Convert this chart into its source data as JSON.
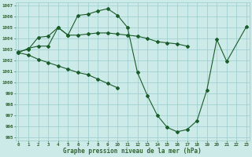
{
  "title": "Graphe pression niveau de la mer (hPa)",
  "bg_color": "#cceae8",
  "grid_color": "#99cccc",
  "line_color": "#1a5c2a",
  "tick_color": "#336633",
  "xlim": [
    -0.3,
    23.3
  ],
  "ylim": [
    994.7,
    1007.3
  ],
  "xticks": [
    0,
    1,
    2,
    3,
    4,
    5,
    6,
    7,
    8,
    9,
    10,
    11,
    12,
    13,
    14,
    15,
    16,
    17,
    18,
    19,
    20,
    21,
    22,
    23
  ],
  "yticks": [
    995,
    996,
    997,
    998,
    999,
    1000,
    1001,
    1002,
    1003,
    1004,
    1005,
    1006,
    1007
  ],
  "series1_x": [
    0,
    1,
    2,
    3,
    4,
    5,
    6,
    7,
    8,
    9,
    10,
    11,
    12,
    13,
    14,
    15,
    16,
    17,
    18,
    19,
    20,
    21,
    23
  ],
  "series1_y": [
    1002.7,
    1003.1,
    1003.3,
    1003.3,
    1005.0,
    1004.3,
    1006.1,
    1006.2,
    1006.5,
    1006.7,
    1006.1,
    1005.0,
    1000.9,
    998.8,
    997.0,
    995.9,
    995.5,
    995.7,
    996.5,
    999.3,
    1003.9,
    1001.9,
    1005.1
  ],
  "series2_x": [
    0,
    1,
    2,
    3,
    4,
    5,
    6,
    7,
    8,
    9,
    10,
    11,
    12,
    13,
    14,
    15,
    16,
    17
  ],
  "series2_y": [
    1002.8,
    1003.0,
    1004.1,
    1004.2,
    1005.0,
    1004.3,
    1004.3,
    1004.4,
    1004.5,
    1004.5,
    1004.4,
    1004.3,
    1004.2,
    1004.0,
    1003.7,
    1003.6,
    1003.5,
    1003.3
  ],
  "series3_x": [
    0,
    1,
    2,
    3,
    4,
    5,
    6,
    7,
    8,
    9,
    10
  ],
  "series3_y": [
    1002.7,
    1002.5,
    1002.1,
    1001.8,
    1001.5,
    1001.2,
    1000.9,
    1000.7,
    1000.3,
    999.9,
    999.5
  ]
}
